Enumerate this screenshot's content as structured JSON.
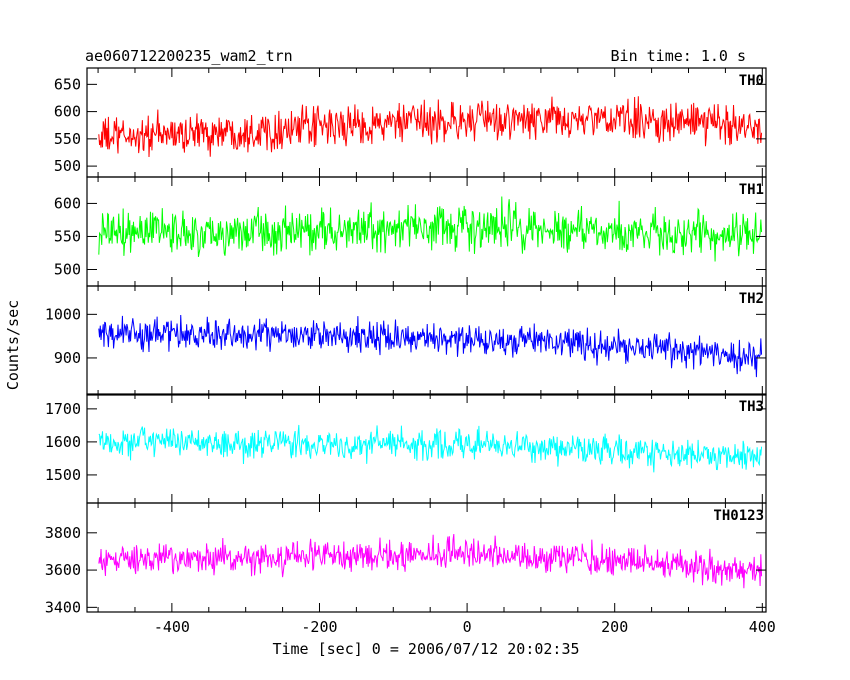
{
  "header": {
    "title": "ae060712200235_wam2_trn",
    "bin_time": "Bin time: 1.0 s"
  },
  "chart_data": {
    "type": "line",
    "xlabel": "Time [sec] 0 = 2006/07/12 20:02:35",
    "ylabel": "Counts/sec",
    "xlim": [
      -515,
      405
    ],
    "xticks": [
      -400,
      -200,
      0,
      200,
      400
    ],
    "x_range": [
      -499,
      399
    ],
    "x_step": 1,
    "panels": [
      {
        "name": "TH0",
        "color": "#ff0000",
        "ylim": [
          480,
          680
        ],
        "yticks": [
          500,
          550,
          600,
          650
        ],
        "trend": [
          [
            -499,
            552
          ],
          [
            -250,
            568
          ],
          [
            -100,
            578
          ],
          [
            0,
            583
          ],
          [
            200,
            585
          ],
          [
            399,
            575
          ]
        ],
        "noise": 40
      },
      {
        "name": "TH1",
        "color": "#00ff00",
        "ylim": [
          475,
          640
        ],
        "yticks": [
          500,
          550,
          600
        ],
        "trend": [
          [
            -499,
            555
          ],
          [
            -250,
            558
          ],
          [
            0,
            562
          ],
          [
            200,
            558
          ],
          [
            399,
            552
          ]
        ],
        "noise": 38
      },
      {
        "name": "TH2",
        "color": "#0000ff",
        "ylim": [
          815,
          1065
        ],
        "yticks": [
          900,
          1000
        ],
        "trend": [
          [
            -499,
            958
          ],
          [
            -250,
            952
          ],
          [
            0,
            943
          ],
          [
            200,
            928
          ],
          [
            399,
            903
          ]
        ],
        "noise": 38
      },
      {
        "name": "TH3",
        "color": "#00ffff",
        "ylim": [
          1415,
          1745
        ],
        "yticks": [
          1500,
          1600,
          1700
        ],
        "trend": [
          [
            -499,
            1602
          ],
          [
            -250,
            1597
          ],
          [
            0,
            1592
          ],
          [
            200,
            1575
          ],
          [
            399,
            1548
          ]
        ],
        "noise": 50
      },
      {
        "name": "TH0123",
        "color": "#ff00ff",
        "ylim": [
          3375,
          3960
        ],
        "yticks": [
          3400,
          3600,
          3800
        ],
        "trend": [
          [
            -499,
            3658
          ],
          [
            -250,
            3665
          ],
          [
            0,
            3690
          ],
          [
            200,
            3650
          ],
          [
            399,
            3590
          ]
        ],
        "noise": 90
      }
    ]
  }
}
